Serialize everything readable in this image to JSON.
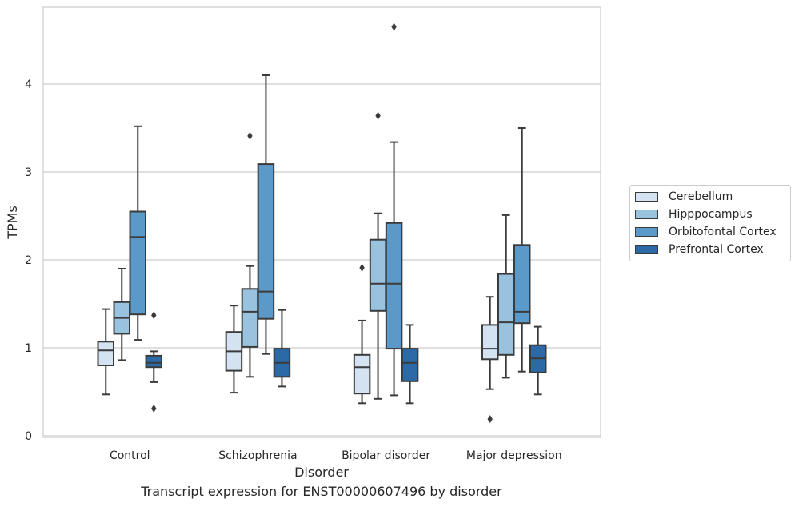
{
  "chart_data": {
    "type": "boxplot",
    "xlabel": "Disorder",
    "ylabel": "TPMs",
    "ylim": [
      0,
      4.8
    ],
    "yticks": [
      0,
      1,
      2,
      3,
      4
    ],
    "grid": true,
    "legend_position": "right",
    "categories": [
      "Control",
      "Schizophrenia",
      "Bipolar disorder",
      "Major depression"
    ],
    "series": [
      {
        "name": "Cerebellum",
        "color": "#d3e3f1",
        "boxes": [
          {
            "whislo": 0.47,
            "q1": 0.8,
            "med": 0.97,
            "q3": 1.07,
            "whishi": 1.44,
            "fliers": []
          },
          {
            "whislo": 0.49,
            "q1": 0.74,
            "med": 0.96,
            "q3": 1.18,
            "whishi": 1.48,
            "fliers": []
          },
          {
            "whislo": 0.37,
            "q1": 0.48,
            "med": 0.78,
            "q3": 0.92,
            "whishi": 1.31,
            "fliers": [
              1.91
            ]
          },
          {
            "whislo": 0.53,
            "q1": 0.87,
            "med": 0.99,
            "q3": 1.26,
            "whishi": 1.58,
            "fliers": [
              0.19
            ]
          }
        ]
      },
      {
        "name": "Hipppocampus",
        "color": "#99c2de",
        "boxes": [
          {
            "whislo": 0.86,
            "q1": 1.16,
            "med": 1.34,
            "q3": 1.52,
            "whishi": 1.9,
            "fliers": []
          },
          {
            "whislo": 0.67,
            "q1": 1.01,
            "med": 1.41,
            "q3": 1.67,
            "whishi": 1.93,
            "fliers": [
              3.41
            ]
          },
          {
            "whislo": 0.42,
            "q1": 1.42,
            "med": 1.73,
            "q3": 2.23,
            "whishi": 2.53,
            "fliers": [
              3.64
            ]
          },
          {
            "whislo": 0.66,
            "q1": 0.92,
            "med": 1.29,
            "q3": 1.84,
            "whishi": 2.51,
            "fliers": []
          }
        ]
      },
      {
        "name": "Orbitofontal Cortex",
        "color": "#5b99c8",
        "boxes": [
          {
            "whislo": 1.09,
            "q1": 1.38,
            "med": 2.26,
            "q3": 2.55,
            "whishi": 3.52,
            "fliers": []
          },
          {
            "whislo": 0.93,
            "q1": 1.33,
            "med": 1.64,
            "q3": 3.09,
            "whishi": 4.1,
            "fliers": []
          },
          {
            "whislo": 0.46,
            "q1": 0.99,
            "med": 1.73,
            "q3": 2.42,
            "whishi": 3.34,
            "fliers": [
              4.65
            ]
          },
          {
            "whislo": 0.73,
            "q1": 1.28,
            "med": 1.41,
            "q3": 2.17,
            "whishi": 3.5,
            "fliers": []
          }
        ]
      },
      {
        "name": "Prefrontal Cortex",
        "color": "#2b6aa6",
        "boxes": [
          {
            "whislo": 0.61,
            "q1": 0.78,
            "med": 0.83,
            "q3": 0.91,
            "whishi": 0.96,
            "fliers": [
              1.37,
              0.31
            ]
          },
          {
            "whislo": 0.56,
            "q1": 0.67,
            "med": 0.83,
            "q3": 0.99,
            "whishi": 1.43,
            "fliers": []
          },
          {
            "whislo": 0.37,
            "q1": 0.62,
            "med": 0.83,
            "q3": 0.99,
            "whishi": 1.26,
            "fliers": []
          },
          {
            "whislo": 0.47,
            "q1": 0.72,
            "med": 0.88,
            "q3": 1.03,
            "whishi": 1.24,
            "fliers": []
          }
        ]
      }
    ],
    "caption": "Transcript expression for ENST00000607496 by disorder"
  }
}
